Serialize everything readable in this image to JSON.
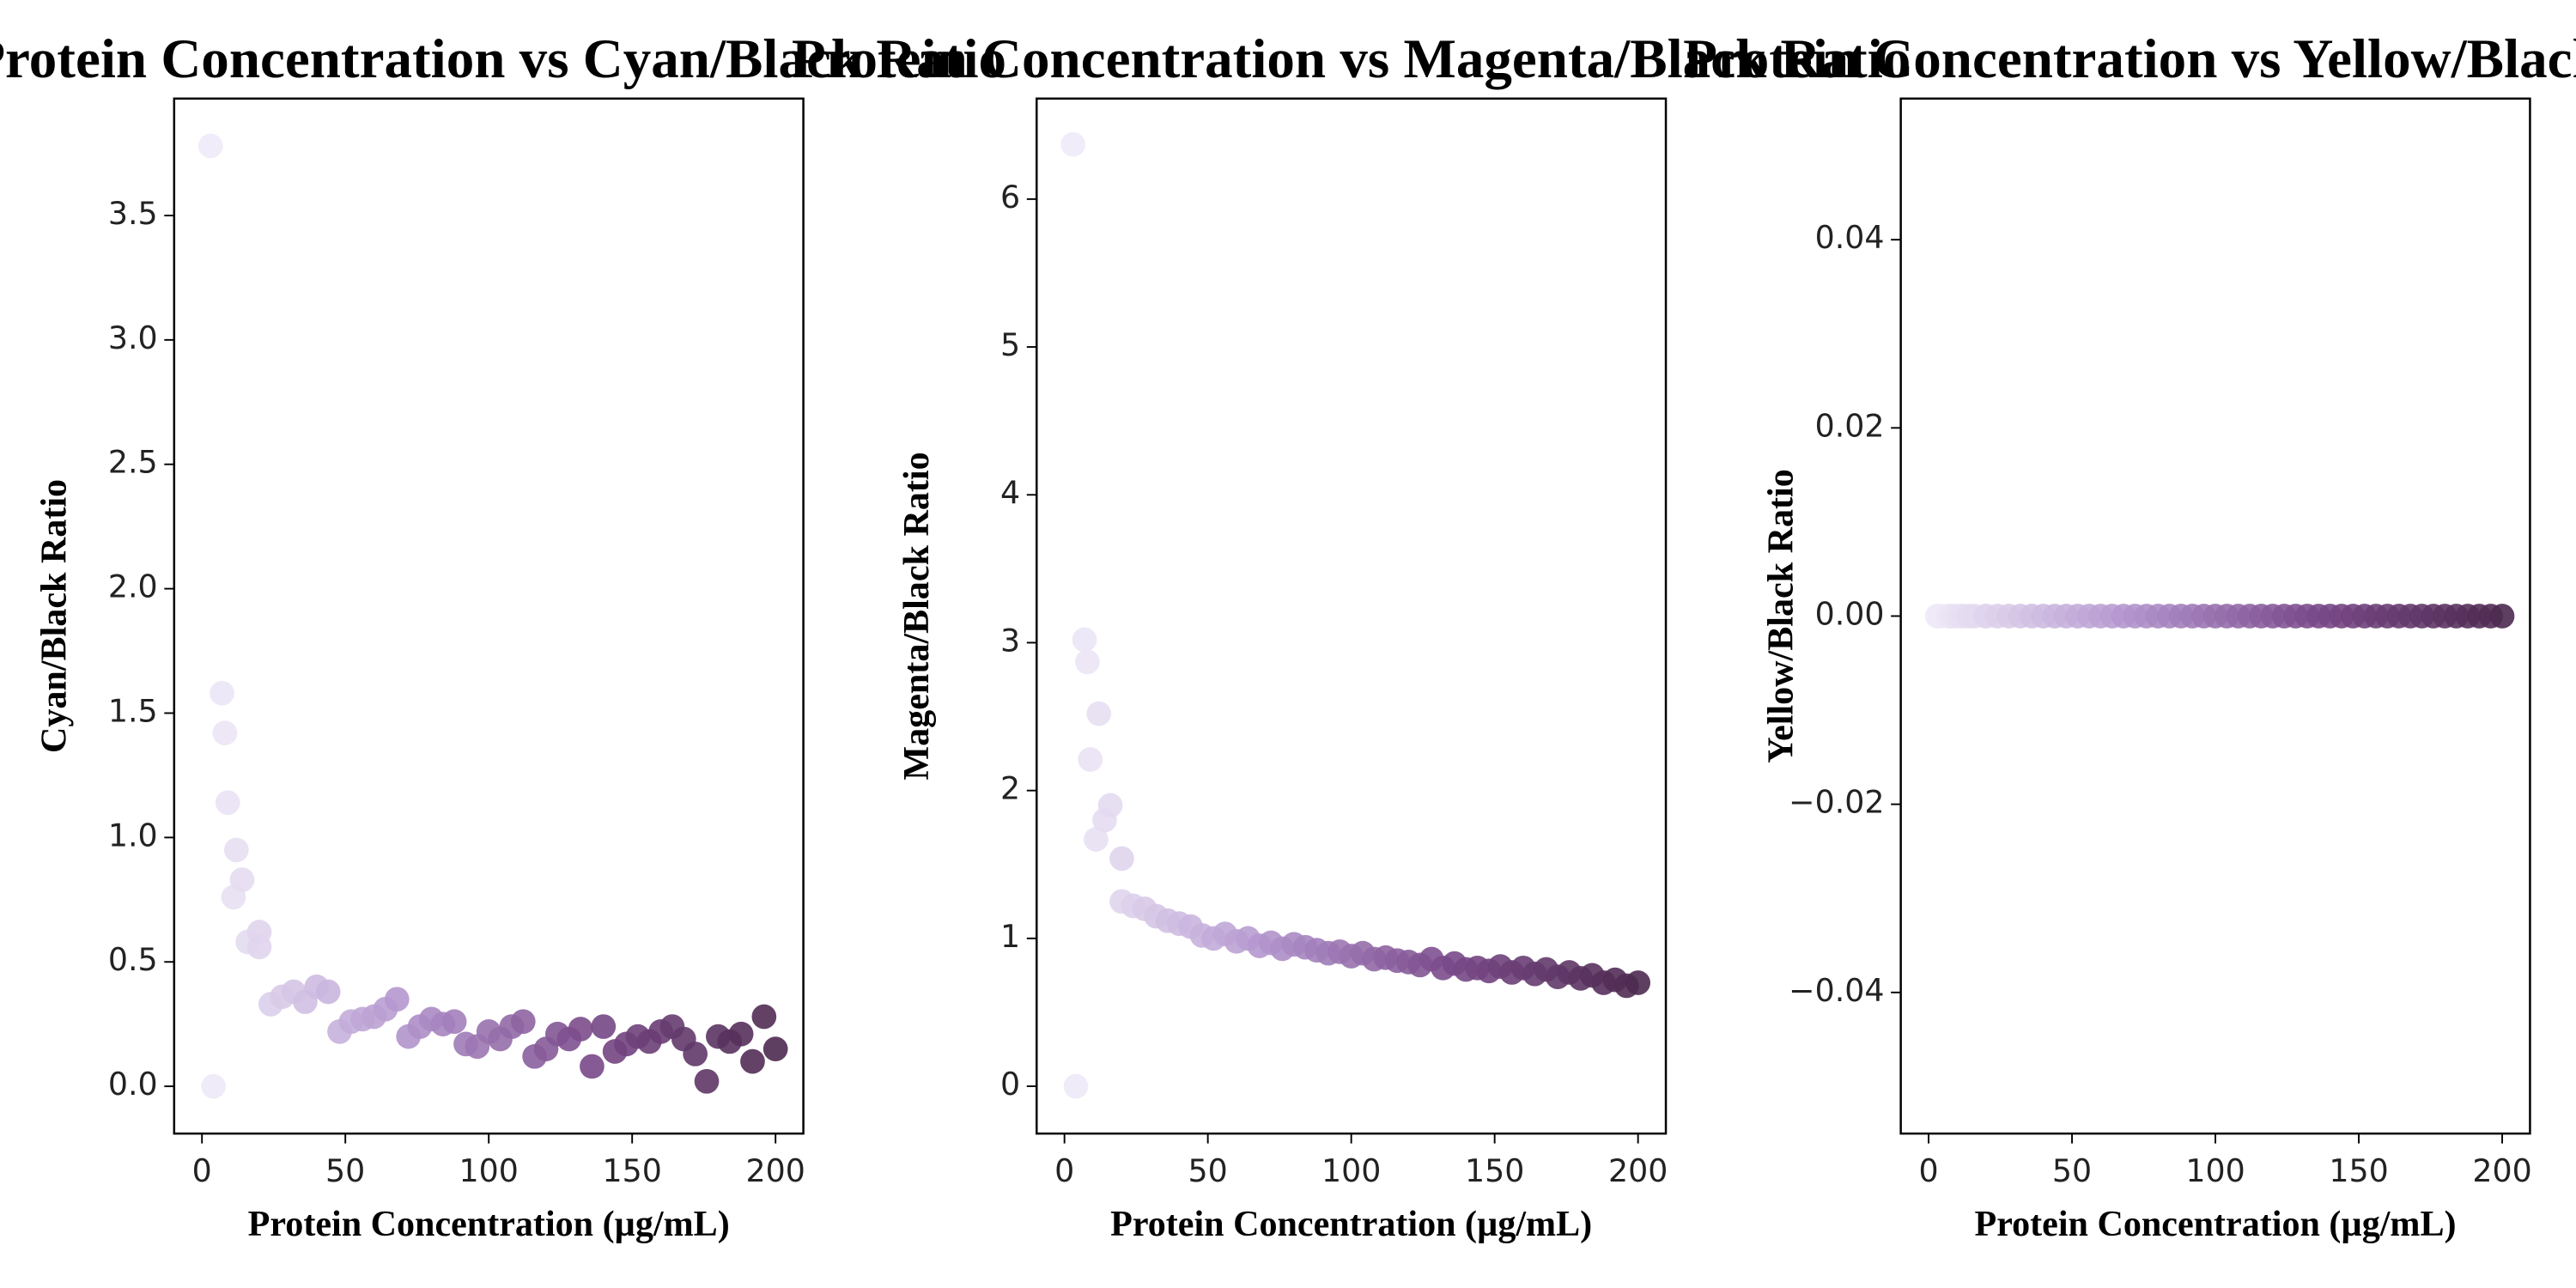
{
  "chart_data": [
    {
      "type": "scatter",
      "title": "Protein Concentration vs Cyan/Black Ratio",
      "x_label": "Protein Concentration (µg/mL)",
      "y_label": "Cyan/Black Ratio",
      "x": [
        3,
        4,
        7,
        8,
        9,
        11,
        12,
        14,
        16,
        20,
        20,
        24,
        28,
        32,
        36,
        40,
        44,
        48,
        52,
        56,
        60,
        64,
        68,
        72,
        76,
        80,
        84,
        88,
        92,
        96,
        100,
        104,
        108,
        112,
        116,
        120,
        124,
        128,
        132,
        136,
        140,
        144,
        148,
        152,
        156,
        160,
        164,
        168,
        172,
        176,
        180,
        184,
        188,
        192,
        196,
        200
      ],
      "values": [
        3.78,
        0,
        1.58,
        1.42,
        1.14,
        0.76,
        0.95,
        0.83,
        0.58,
        0.62,
        0.56,
        0.33,
        0.36,
        0.38,
        0.34,
        0.4,
        0.38,
        0.22,
        0.26,
        0.27,
        0.28,
        0.31,
        0.35,
        0.2,
        0.24,
        0.27,
        0.25,
        0.26,
        0.17,
        0.16,
        0.22,
        0.19,
        0.24,
        0.26,
        0.12,
        0.15,
        0.21,
        0.19,
        0.23,
        0.08,
        0.24,
        0.14,
        0.17,
        0.2,
        0.18,
        0.22,
        0.24,
        0.19,
        0.13,
        0.02,
        0.2,
        0.18,
        0.21,
        0.1,
        0.28,
        0.15
      ],
      "colors": [
        "#efeaf8",
        "#b497cf",
        "#7a4a8a",
        "#4e2a50"
      ],
      "xlim": [
        -9.7,
        209.7
      ],
      "xticks": [
        0,
        50,
        100,
        150,
        200
      ],
      "ylim": [
        -0.19,
        3.97
      ],
      "yticks": [
        {
          "value": 0,
          "label": "0.0"
        },
        0.5,
        {
          "value": 1,
          "label": "1.0"
        },
        1.5,
        {
          "value": 2,
          "label": "2.0"
        },
        2.5,
        {
          "value": 3,
          "label": "3.0"
        },
        3.5
      ]
    },
    {
      "type": "scatter",
      "title": "Protein Concentration vs Magenta/Black Ratio",
      "x_label": "Protein Concentration (µg/mL)",
      "y_label": "Magenta/Black Ratio",
      "x": [
        3,
        4,
        7,
        8,
        9,
        11,
        12,
        14,
        16,
        20,
        20,
        24,
        28,
        32,
        36,
        40,
        44,
        48,
        52,
        56,
        60,
        64,
        68,
        72,
        76,
        80,
        84,
        88,
        92,
        96,
        100,
        104,
        108,
        112,
        116,
        120,
        124,
        128,
        132,
        136,
        140,
        144,
        148,
        152,
        156,
        160,
        164,
        168,
        172,
        176,
        180,
        184,
        188,
        192,
        196,
        200
      ],
      "values": [
        6.37,
        0,
        3.02,
        2.87,
        2.21,
        1.67,
        2.52,
        1.8,
        1.9,
        1.54,
        1.25,
        1.22,
        1.2,
        1.15,
        1.12,
        1.1,
        1.08,
        1.02,
        1.0,
        1.03,
        0.98,
        1.0,
        0.95,
        0.97,
        0.93,
        0.96,
        0.94,
        0.92,
        0.9,
        0.91,
        0.88,
        0.9,
        0.86,
        0.87,
        0.85,
        0.84,
        0.82,
        0.86,
        0.8,
        0.83,
        0.79,
        0.8,
        0.78,
        0.81,
        0.77,
        0.8,
        0.76,
        0.79,
        0.74,
        0.77,
        0.73,
        0.75,
        0.7,
        0.72,
        0.68,
        0.7
      ],
      "colors": [
        "#efeaf8",
        "#b497cf",
        "#7a4a8a",
        "#4e2a50"
      ],
      "xlim": [
        -9.7,
        209.7
      ],
      "xticks": [
        0,
        50,
        100,
        150,
        200
      ],
      "ylim": [
        -0.32,
        6.68
      ],
      "yticks": [
        0,
        1,
        2,
        3,
        4,
        5,
        6
      ]
    },
    {
      "type": "scatter",
      "title": "Protein Concentration vs Yellow/Black Ratio",
      "x_label": "Protein Concentration (µg/mL)",
      "y_label": "Yellow/Black Ratio",
      "x": [
        3,
        4,
        7,
        8,
        9,
        11,
        12,
        14,
        16,
        20,
        20,
        24,
        28,
        32,
        36,
        40,
        44,
        48,
        52,
        56,
        60,
        64,
        68,
        72,
        76,
        80,
        84,
        88,
        92,
        96,
        100,
        104,
        108,
        112,
        116,
        120,
        124,
        128,
        132,
        136,
        140,
        144,
        148,
        152,
        156,
        160,
        164,
        168,
        172,
        176,
        180,
        184,
        188,
        192,
        196,
        200
      ],
      "values": [
        0,
        0,
        0,
        0,
        0,
        0,
        0,
        0,
        0,
        0,
        0,
        0,
        0,
        0,
        0,
        0,
        0,
        0,
        0,
        0,
        0,
        0,
        0,
        0,
        0,
        0,
        0,
        0,
        0,
        0,
        0,
        0,
        0,
        0,
        0,
        0,
        0,
        0,
        0,
        0,
        0,
        0,
        0,
        0,
        0,
        0,
        0,
        0,
        0,
        0,
        0,
        0,
        0,
        0,
        0,
        0
      ],
      "colors": [
        "#efeaf8",
        "#b497cf",
        "#7a4a8a",
        "#4e2a50"
      ],
      "xlim": [
        -9.7,
        209.7
      ],
      "xticks": [
        0,
        50,
        100,
        150,
        200
      ],
      "ylim": [
        -0.055,
        0.055
      ],
      "yticks": [
        {
          "value": -0.04,
          "label": "−0.04"
        },
        {
          "value": -0.02,
          "label": "−0.02"
        },
        {
          "value": 0,
          "label": "0.00"
        },
        {
          "value": 0.02,
          "label": "0.02"
        },
        {
          "value": 0.04,
          "label": "0.04"
        }
      ]
    }
  ]
}
